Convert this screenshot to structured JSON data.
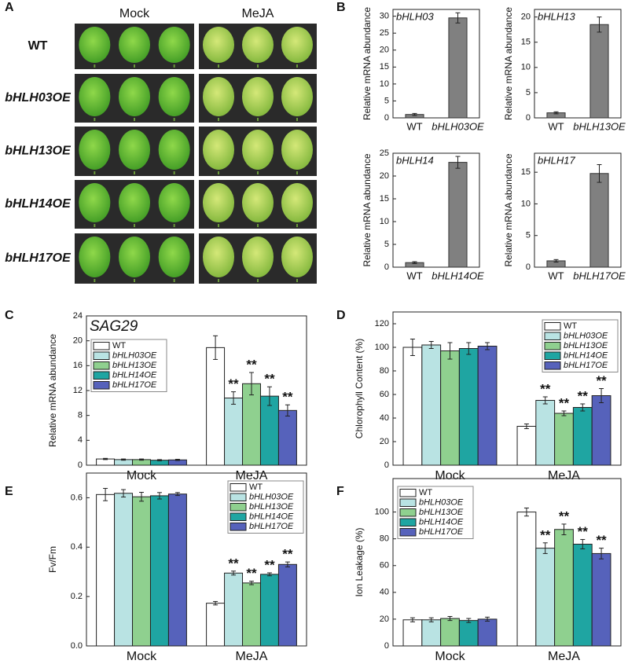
{
  "panel_a": {
    "label": "A",
    "columns": [
      "Mock",
      "MeJA"
    ],
    "rows": [
      "WT",
      "bHLH03OE",
      "bHLH13OE",
      "bHLH14OE",
      "bHLH17OE"
    ]
  },
  "chart_data": [
    {
      "type": "bar",
      "panel_label": "B",
      "title": "bHLH03",
      "ylabel": "Relative mRNA abundance",
      "categories": [
        "WT",
        "bHLH03OE"
      ],
      "values": [
        1,
        29.5
      ],
      "errors": [
        0.3,
        1.5
      ],
      "color": "#808080",
      "ylim": [
        0,
        32
      ],
      "yticks": [
        0,
        5,
        10,
        15,
        20,
        25,
        30
      ]
    },
    {
      "type": "bar",
      "title": "bHLH13",
      "ylabel": "Relative mRNA abundance",
      "categories": [
        "WT",
        "bHLH13OE"
      ],
      "values": [
        1,
        18.5
      ],
      "errors": [
        0.2,
        1.5
      ],
      "color": "#808080",
      "ylim": [
        0,
        21.5
      ],
      "yticks": [
        0,
        5,
        10,
        15,
        20
      ]
    },
    {
      "type": "bar",
      "title": "bHLH14",
      "ylabel": "Relative mRNA abundance",
      "categories": [
        "WT",
        "bHLH14OE"
      ],
      "values": [
        1,
        23
      ],
      "errors": [
        0.2,
        1.3
      ],
      "color": "#808080",
      "ylim": [
        0,
        25
      ],
      "yticks": [
        0,
        5,
        10,
        15,
        20,
        25
      ]
    },
    {
      "type": "bar",
      "title": "bHLH17",
      "ylabel": "Relative mRNA abundance",
      "categories": [
        "WT",
        "bHLH17OE"
      ],
      "values": [
        1,
        14.8
      ],
      "errors": [
        0.2,
        1.4
      ],
      "color": "#808080",
      "ylim": [
        0,
        18
      ],
      "yticks": [
        0,
        5,
        10,
        15
      ]
    },
    {
      "type": "grouped_bar",
      "panel_label": "C",
      "title": "SAG29",
      "ylabel": "Relative mRNA abundance",
      "categories": [
        "Mock",
        "MeJA"
      ],
      "ylim": [
        0,
        24
      ],
      "yticks": [
        0,
        4,
        8,
        12,
        16,
        20,
        24
      ],
      "legend": "upper left",
      "series": [
        {
          "name": "WT",
          "color": "#ffffff",
          "values": [
            1.0,
            18.9
          ],
          "errors": [
            0.1,
            1.9
          ],
          "significance": [
            null,
            null
          ]
        },
        {
          "name": "bHLH03OE",
          "color": "#b9e3e3",
          "values": [
            0.9,
            10.8
          ],
          "errors": [
            0.1,
            1.0
          ],
          "significance": [
            null,
            "**"
          ]
        },
        {
          "name": "bHLH13OE",
          "color": "#8fd08f",
          "values": [
            0.9,
            13.1
          ],
          "errors": [
            0.1,
            1.8
          ],
          "significance": [
            null,
            "**"
          ]
        },
        {
          "name": "bHLH14OE",
          "color": "#1fa5a2",
          "values": [
            0.8,
            11.1
          ],
          "errors": [
            0.1,
            1.5
          ],
          "significance": [
            null,
            "**"
          ]
        },
        {
          "name": "bHLH17OE",
          "color": "#5662bb",
          "values": [
            0.85,
            8.8
          ],
          "errors": [
            0.1,
            0.9
          ],
          "significance": [
            null,
            "**"
          ]
        }
      ]
    },
    {
      "type": "grouped_bar",
      "panel_label": "D",
      "ylabel": "Chlorophyll Content (%)",
      "categories": [
        "Mock",
        "MeJA"
      ],
      "ylim": [
        0,
        130
      ],
      "yticks": [
        0,
        20,
        40,
        60,
        80,
        100,
        120
      ],
      "legend": "upper right",
      "series": [
        {
          "name": "WT",
          "color": "#ffffff",
          "values": [
            100,
            33
          ],
          "errors": [
            7,
            2
          ],
          "significance": [
            null,
            null
          ]
        },
        {
          "name": "bHLH03OE",
          "color": "#b9e3e3",
          "values": [
            102,
            55
          ],
          "errors": [
            3,
            3
          ],
          "significance": [
            null,
            "**"
          ]
        },
        {
          "name": "bHLH13OE",
          "color": "#8fd08f",
          "values": [
            97,
            44
          ],
          "errors": [
            7,
            2
          ],
          "significance": [
            null,
            "**"
          ]
        },
        {
          "name": "bHLH14OE",
          "color": "#1fa5a2",
          "values": [
            99,
            49
          ],
          "errors": [
            5,
            3
          ],
          "significance": [
            null,
            "**"
          ]
        },
        {
          "name": "bHLH17OE",
          "color": "#5662bb",
          "values": [
            101,
            59
          ],
          "errors": [
            3,
            6
          ],
          "significance": [
            null,
            "**"
          ]
        }
      ]
    },
    {
      "type": "grouped_bar",
      "panel_label": "E",
      "ylabel": "Fv/Fm",
      "categories": [
        "Mock",
        "MeJA"
      ],
      "ylim": [
        0,
        0.7
      ],
      "yticks": [
        {
          "value": 0,
          "label": "0.0"
        },
        0.2,
        0.4,
        0.6
      ],
      "legend": "upper right",
      "series": [
        {
          "name": "WT",
          "color": "#ffffff",
          "values": [
            0.613,
            0.173
          ],
          "errors": [
            0.025,
            0.007
          ],
          "significance": [
            null,
            null
          ]
        },
        {
          "name": "bHLH03OE",
          "color": "#b9e3e3",
          "values": [
            0.618,
            0.295
          ],
          "errors": [
            0.015,
            0.008
          ],
          "significance": [
            null,
            "**"
          ]
        },
        {
          "name": "bHLH13OE",
          "color": "#8fd08f",
          "values": [
            0.604,
            0.255
          ],
          "errors": [
            0.018,
            0.007
          ],
          "significance": [
            null,
            "**"
          ]
        },
        {
          "name": "bHLH14OE",
          "color": "#1fa5a2",
          "values": [
            0.608,
            0.29
          ],
          "errors": [
            0.013,
            0.006
          ],
          "significance": [
            null,
            "**"
          ]
        },
        {
          "name": "bHLH17OE",
          "color": "#5662bb",
          "values": [
            0.615,
            0.33
          ],
          "errors": [
            0.006,
            0.01
          ],
          "significance": [
            null,
            "**"
          ]
        }
      ]
    },
    {
      "type": "grouped_bar",
      "panel_label": "F",
      "ylabel": "Ion Leakage (%)",
      "categories": [
        "Mock",
        "MeJA"
      ],
      "ylim": [
        0,
        125
      ],
      "yticks": [
        0,
        20,
        40,
        60,
        80,
        100
      ],
      "legend": "upper left",
      "series": [
        {
          "name": "WT",
          "color": "#ffffff",
          "values": [
            19.5,
            100
          ],
          "errors": [
            1.5,
            3
          ],
          "significance": [
            null,
            null
          ]
        },
        {
          "name": "bHLH03OE",
          "color": "#b9e3e3",
          "values": [
            19.5,
            73
          ],
          "errors": [
            1.5,
            4
          ],
          "significance": [
            null,
            "**"
          ]
        },
        {
          "name": "bHLH13OE",
          "color": "#8fd08f",
          "values": [
            20.5,
            87
          ],
          "errors": [
            1.5,
            4
          ],
          "significance": [
            null,
            "**"
          ]
        },
        {
          "name": "bHLH14OE",
          "color": "#1fa5a2",
          "values": [
            19,
            76
          ],
          "errors": [
            1.5,
            3.5
          ],
          "significance": [
            null,
            "**"
          ]
        },
        {
          "name": "bHLH17OE",
          "color": "#5662bb",
          "values": [
            20,
            69
          ],
          "errors": [
            1.5,
            4
          ],
          "significance": [
            null,
            "**"
          ]
        }
      ]
    }
  ]
}
